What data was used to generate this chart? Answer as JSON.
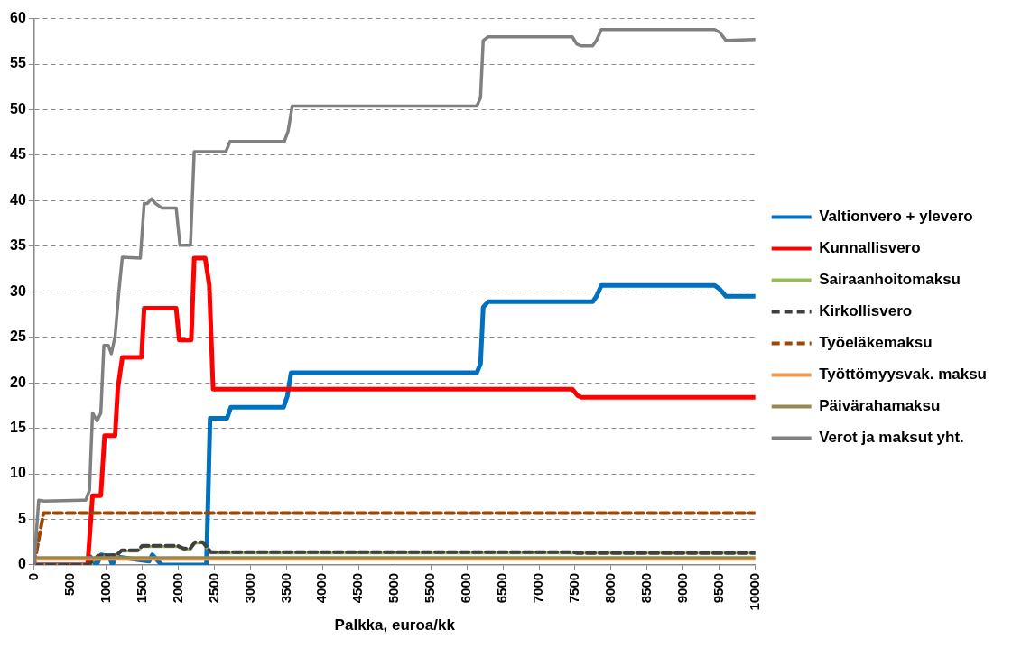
{
  "chart_data": {
    "type": "line",
    "xlabel": "Palkka, euroa/kk",
    "xlim": [
      0,
      10000
    ],
    "xticks": [
      0,
      500,
      1000,
      1500,
      2000,
      2500,
      3000,
      3500,
      4000,
      4500,
      5000,
      5500,
      6000,
      6500,
      7000,
      7500,
      8000,
      8500,
      9000,
      9500,
      10000
    ],
    "ylim": [
      0,
      60
    ],
    "yticks": [
      0,
      5,
      10,
      15,
      20,
      25,
      30,
      35,
      40,
      45,
      50,
      55,
      60
    ],
    "grid": "y",
    "legend": "right",
    "marker": "none",
    "series": [
      {
        "name": "Valtionvero + ylevero",
        "color": "#0070c0",
        "line_style": "solid",
        "x": [
          0,
          733,
          777,
          865,
          931,
          1042,
          1086,
          1130,
          1594,
          1638,
          1770,
          2389,
          2440,
          2675,
          2727,
          3458,
          3510,
          3563,
          6138,
          6190,
          6227,
          6295,
          7745,
          7797,
          7865,
          9436,
          9504,
          9593,
          10000
        ],
        "values": [
          0,
          0,
          0.9,
          0,
          1.1,
          0.9,
          0,
          0.9,
          0.4,
          1.1,
          0,
          0,
          16.1,
          16.1,
          17.3,
          17.3,
          18.5,
          21.1,
          21.1,
          22.1,
          28.3,
          28.9,
          28.9,
          29.5,
          30.7,
          30.7,
          30.3,
          29.5,
          29.5
        ]
      },
      {
        "name": "Kunnallisvero",
        "color": "#ff0000",
        "line_style": "solid",
        "x": [
          0,
          742,
          810,
          925,
          977,
          1123,
          1160,
          1223,
          1489,
          1526,
          1970,
          2012,
          2179,
          2220,
          2372,
          2429,
          2482,
          7462,
          7535,
          7588,
          10000
        ],
        "values": [
          0,
          0,
          7.6,
          7.6,
          14.2,
          14.2,
          19.3,
          22.8,
          22.8,
          28.2,
          28.2,
          24.7,
          24.7,
          33.7,
          33.7,
          30.7,
          19.3,
          19.3,
          18.6,
          18.4,
          18.4
        ]
      },
      {
        "name": "Sairaanhoitomaksu",
        "color": "#9bbb59",
        "line_style": "solid",
        "x": [
          0,
          755,
          883,
          1147,
          1214,
          1435,
          1501,
          1987,
          2075,
          2163,
          2230,
          2340,
          2450,
          10000
        ],
        "values": [
          0,
          0,
          0.9,
          1.0,
          1.5,
          1.5,
          2.0,
          2.0,
          1.7,
          1.7,
          2.4,
          2.4,
          1.3,
          1.3
        ]
      },
      {
        "name": "Kirkollisvero",
        "color": "#404040",
        "line_style": "dashed",
        "x": [
          0,
          755,
          883,
          1147,
          1214,
          1435,
          1501,
          1987,
          2075,
          2163,
          2230,
          2340,
          2450,
          7462,
          7535,
          10000
        ],
        "values": [
          0,
          0,
          1.0,
          1.1,
          1.6,
          1.6,
          2.1,
          2.1,
          1.8,
          1.8,
          2.5,
          2.5,
          1.4,
          1.4,
          1.3,
          1.3
        ]
      },
      {
        "name": "Työeläkemaksu",
        "color": "#984807",
        "line_style": "dashed",
        "x": [
          0,
          130,
          10000
        ],
        "values": [
          0,
          5.7,
          5.7
        ]
      },
      {
        "name": "Työttömyysvak. maksu",
        "color": "#f79646",
        "line_style": "solid",
        "x": [
          0,
          10000
        ],
        "values": [
          0.6,
          0.6
        ]
      },
      {
        "name": "Päivärahamaksu",
        "color": "#948a54",
        "line_style": "solid",
        "x": [
          0,
          10000
        ],
        "values": [
          0.8,
          0.8
        ]
      },
      {
        "name": "Verot ja maksut yht.",
        "color": "#808080",
        "line_style": "solid",
        "x": [
          0,
          63,
          141,
          663,
          715,
          768,
          810,
          872,
          925,
          967,
          1029,
          1071,
          1123,
          1176,
          1223,
          1473,
          1526,
          1567,
          1630,
          1682,
          1771,
          1970,
          2022,
          2168,
          2220,
          2659,
          2717,
          3469,
          3521,
          3579,
          6138,
          6190,
          6227,
          6295,
          7462,
          7525,
          7588,
          7745,
          7797,
          7865,
          9436,
          9504,
          9593,
          10000
        ],
        "values": [
          0,
          7.1,
          7.0,
          7.1,
          7.1,
          8.2,
          16.7,
          15.8,
          16.7,
          24.1,
          24.1,
          23.2,
          25.1,
          30.1,
          33.8,
          33.7,
          39.7,
          39.7,
          40.2,
          39.7,
          39.2,
          39.2,
          35.1,
          35.1,
          45.4,
          45.4,
          46.5,
          46.5,
          47.6,
          50.4,
          50.4,
          51.3,
          57.6,
          58.0,
          58.0,
          57.2,
          57.0,
          57.0,
          57.6,
          58.8,
          58.8,
          58.5,
          57.6,
          57.7
        ]
      }
    ]
  }
}
